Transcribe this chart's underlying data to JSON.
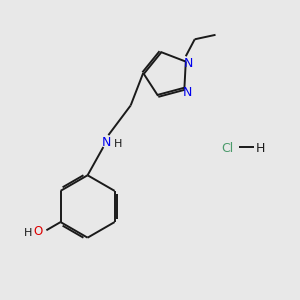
{
  "background_color": "#e8e8e8",
  "bond_color": "#1a1a1a",
  "bond_width": 1.4,
  "N_color": "#0000ee",
  "O_color": "#dd0000",
  "Cl_color": "#4a9a6a",
  "text_color": "#1a1a1a",
  "figsize": [
    3.0,
    3.0
  ],
  "dpi": 100,
  "xlim": [
    0,
    10
  ],
  "ylim": [
    0,
    10
  ]
}
